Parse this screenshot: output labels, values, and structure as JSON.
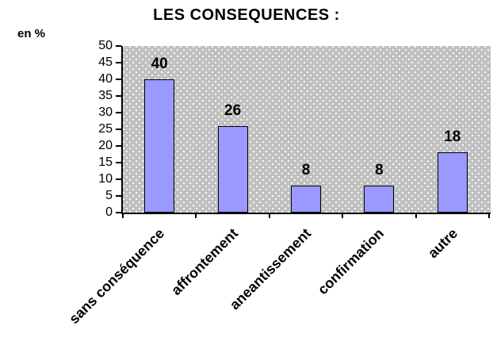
{
  "chart_data": {
    "type": "bar",
    "title": "LES CONSEQUENCES :",
    "ylabel": "en %",
    "xlabel": "",
    "categories": [
      "sans conséquence",
      "affrontement",
      "aneantissement",
      "confirmation",
      "autre"
    ],
    "values": [
      40,
      26,
      8,
      8,
      18
    ],
    "ylim": [
      0,
      50
    ],
    "y_ticks": [
      0,
      5,
      10,
      15,
      20,
      25,
      30,
      35,
      40,
      45,
      50
    ],
    "grid": false,
    "legend": false,
    "x_tick_label_rotation_deg": 45,
    "colors": {
      "bar_fill": "#9999FF",
      "bar_border": "#000000",
      "plot_background": "#C0C0C0",
      "plot_dot_pattern": "#FFFFFF",
      "axis": "#000000",
      "text": "#000000",
      "page_background": "#FFFFFF"
    }
  }
}
